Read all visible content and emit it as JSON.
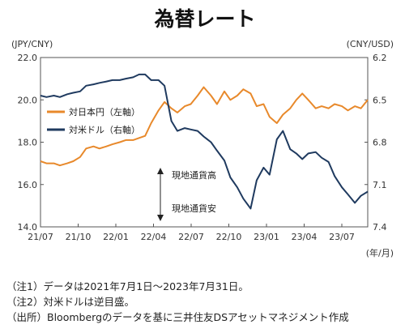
{
  "chart_data": {
    "type": "line",
    "title": "為替レート",
    "left_axis_unit": "(JPY/CNY)",
    "right_axis_unit": "(CNY/USD)",
    "x_axis_unit": "(年/月)",
    "x_tick_labels": [
      "21/07",
      "21/10",
      "22/01",
      "22/04",
      "22/07",
      "22/10",
      "23/01",
      "23/04",
      "23/07"
    ],
    "left_ylim": [
      14.0,
      22.0
    ],
    "left_yticks": [
      "22.0",
      "20.0",
      "18.0",
      "16.0",
      "14.0"
    ],
    "right_ylim": [
      6.2,
      7.4
    ],
    "right_inverted": true,
    "right_yticks": [
      "6.2",
      "6.5",
      "6.8",
      "7.1",
      "7.4"
    ],
    "grid": false,
    "legend_position": "left-middle",
    "series": [
      {
        "name": "対日本円（左軸）",
        "axis": "left",
        "color": "#E8892B",
        "x": [
          "2021-07-01",
          "2021-07-15",
          "2021-08-01",
          "2021-08-15",
          "2021-09-01",
          "2021-09-15",
          "2021-10-01",
          "2021-10-15",
          "2021-11-01",
          "2021-11-15",
          "2021-12-01",
          "2021-12-15",
          "2022-01-01",
          "2022-01-15",
          "2022-02-01",
          "2022-02-15",
          "2022-03-01",
          "2022-03-15",
          "2022-04-01",
          "2022-04-15",
          "2022-05-01",
          "2022-05-15",
          "2022-06-01",
          "2022-06-15",
          "2022-07-01",
          "2022-07-15",
          "2022-08-01",
          "2022-08-15",
          "2022-09-01",
          "2022-09-15",
          "2022-10-01",
          "2022-10-15",
          "2022-11-01",
          "2022-11-15",
          "2022-12-01",
          "2022-12-15",
          "2023-01-01",
          "2023-01-15",
          "2023-02-01",
          "2023-02-15",
          "2023-03-01",
          "2023-03-15",
          "2023-04-01",
          "2023-04-15",
          "2023-05-01",
          "2023-05-15",
          "2023-06-01",
          "2023-06-15",
          "2023-07-01",
          "2023-07-15",
          "2023-07-31"
        ],
        "values": [
          17.1,
          17.0,
          17.0,
          16.9,
          17.0,
          17.1,
          17.3,
          17.7,
          17.8,
          17.7,
          17.8,
          17.9,
          18.0,
          18.1,
          18.1,
          18.2,
          18.3,
          18.9,
          19.5,
          19.9,
          19.6,
          19.4,
          19.7,
          19.8,
          20.2,
          20.6,
          20.2,
          19.8,
          20.4,
          20.0,
          20.2,
          20.5,
          20.3,
          19.7,
          19.8,
          19.2,
          18.9,
          19.3,
          19.6,
          20.0,
          20.3,
          20.0,
          19.6,
          19.7,
          19.6,
          19.8,
          19.7,
          19.5,
          19.7,
          19.6,
          20.0
        ]
      },
      {
        "name": "対米ドル（右軸）",
        "axis": "right",
        "color": "#1F3A5F",
        "x": [
          "2021-07-01",
          "2021-07-15",
          "2021-08-01",
          "2021-08-15",
          "2021-09-01",
          "2021-09-15",
          "2021-10-01",
          "2021-10-15",
          "2021-11-01",
          "2021-11-15",
          "2021-12-01",
          "2021-12-15",
          "2022-01-01",
          "2022-01-15",
          "2022-02-01",
          "2022-02-15",
          "2022-03-01",
          "2022-03-15",
          "2022-04-01",
          "2022-04-15",
          "2022-05-01",
          "2022-05-15",
          "2022-06-01",
          "2022-06-15",
          "2022-07-01",
          "2022-07-15",
          "2022-08-01",
          "2022-08-15",
          "2022-09-01",
          "2022-09-15",
          "2022-10-01",
          "2022-10-15",
          "2022-11-01",
          "2022-11-15",
          "2022-12-01",
          "2022-12-15",
          "2023-01-01",
          "2023-01-15",
          "2023-02-01",
          "2023-02-15",
          "2023-03-01",
          "2023-03-15",
          "2023-04-01",
          "2023-04-15",
          "2023-05-01",
          "2023-05-15",
          "2023-06-01",
          "2023-06-15",
          "2023-07-01",
          "2023-07-15",
          "2023-07-31"
        ],
        "values": [
          6.47,
          6.48,
          6.47,
          6.48,
          6.46,
          6.45,
          6.44,
          6.4,
          6.39,
          6.38,
          6.37,
          6.36,
          6.36,
          6.35,
          6.34,
          6.32,
          6.32,
          6.36,
          6.36,
          6.4,
          6.65,
          6.72,
          6.7,
          6.71,
          6.72,
          6.76,
          6.8,
          6.86,
          6.93,
          7.05,
          7.12,
          7.2,
          7.27,
          7.07,
          6.98,
          7.03,
          6.78,
          6.72,
          6.85,
          6.88,
          6.92,
          6.88,
          6.87,
          6.91,
          6.94,
          7.04,
          7.12,
          7.17,
          7.23,
          7.18,
          7.15
        ]
      }
    ],
    "annotations": [
      {
        "text": "現地通貨高"
      },
      {
        "text": "現地通貨安"
      }
    ]
  },
  "notes": [
    "（注1）データは2021年7月1日～2023年7月31日。",
    "（注2）対米ドルは逆目盛。",
    "（出所）Bloombergのデータを基に三井住友DSアセットマネジメント作成"
  ]
}
